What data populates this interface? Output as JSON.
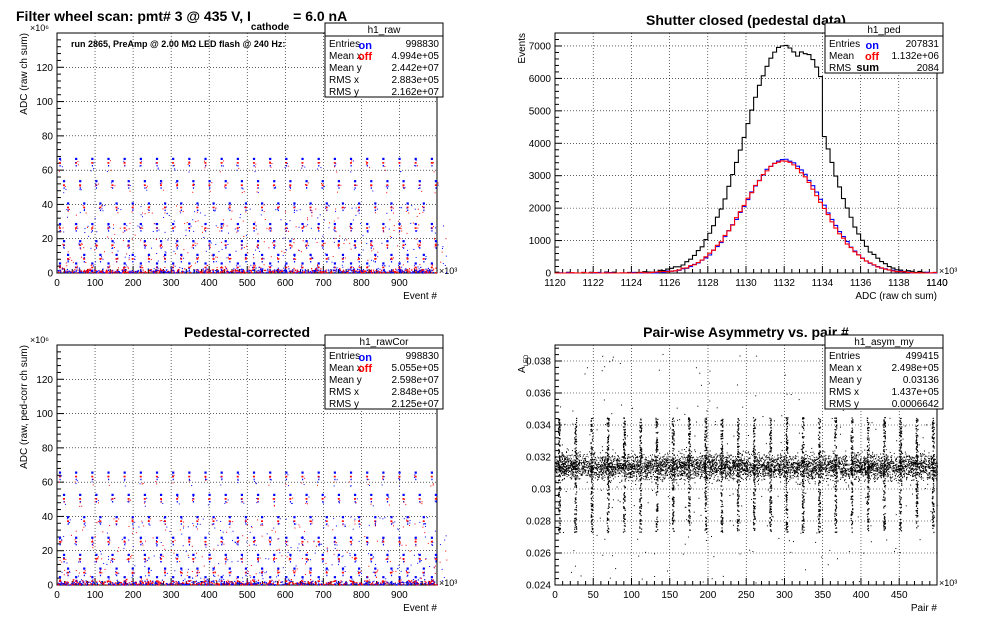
{
  "colors": {
    "on": "#0000ff",
    "off": "#ff0000",
    "sum": "#000000",
    "grid": "#000000"
  },
  "pad_tl": {
    "title_parts": [
      "Filter wheel scan: pmt#   3 @   435 V, I",
      "cathode",
      " = 6.0 nA"
    ],
    "info": "run 2865, PreAmp @ 2.00 MΩ  LED flash @  240 Hz:",
    "legend": [
      "on",
      "off"
    ]
  },
  "pad_bl": {
    "legend": [
      "on",
      "off"
    ]
  },
  "pad_tr": {
    "legend": [
      "on",
      "off",
      "sum"
    ]
  },
  "chart_data": [
    {
      "id": "h1_raw",
      "type": "scatter",
      "title": "",
      "xlabel": "Event #",
      "ylabel": "ADC (raw ch sum)",
      "x_multiplier": "×10³",
      "y_multiplier": "×10⁶",
      "xlim": [
        0,
        998.83
      ],
      "ylim": [
        0,
        140
      ],
      "xticks": [
        0,
        100,
        200,
        300,
        400,
        500,
        600,
        700,
        800,
        900
      ],
      "yticks": [
        0,
        20,
        40,
        60,
        80,
        100,
        120
      ],
      "grid": true,
      "stats": {
        "name": "h1_raw",
        "rows": [
          [
            "Entries",
            "998830"
          ],
          [
            "Mean x",
            "4.994e+05"
          ],
          [
            "Mean y",
            "2.442e+07"
          ],
          [
            "RMS x",
            "2.883e+05"
          ],
          [
            "RMS y",
            "2.162e+07"
          ]
        ]
      },
      "pattern": {
        "cycle_period_ksamples": 42.5,
        "cycle_start": 5,
        "band_levels": [
          66,
          53,
          40,
          28,
          18,
          10,
          5
        ],
        "band_spacing": [
          7,
          6,
          5,
          4,
          3,
          2,
          2
        ]
      }
    },
    {
      "id": "h1_ped",
      "type": "line",
      "title": "Shutter closed (pedestal data)",
      "xlabel": "ADC (raw ch sum)",
      "ylabel": "Events",
      "x_multiplier": "×10³",
      "xlim": [
        1120,
        1140
      ],
      "ylim": [
        0,
        7400
      ],
      "xticks": [
        1120,
        1122,
        1124,
        1126,
        1128,
        1130,
        1132,
        1134,
        1136,
        1138,
        1140
      ],
      "yticks": [
        0,
        1000,
        2000,
        3000,
        4000,
        5000,
        6000,
        7000
      ],
      "grid": true,
      "stats": {
        "name": "h1_ped",
        "rows": [
          [
            "Entries",
            "207831"
          ],
          [
            "Mean",
            "1.132e+06"
          ],
          [
            "RMS",
            "2084"
          ]
        ]
      },
      "series": [
        {
          "name": "sum",
          "values_from": "gaussian",
          "peak": 7000,
          "mean": 1132.0,
          "sigma": 2.08,
          "shoulder": [
            1133.0,
            6800
          ]
        },
        {
          "name": "on",
          "values_from": "gaussian",
          "peak": 3500,
          "mean": 1132.0,
          "sigma": 2.05
        },
        {
          "name": "off",
          "values_from": "gaussian",
          "peak": 3450,
          "mean": 1131.95,
          "sigma": 2.05
        }
      ]
    },
    {
      "id": "h1_rawCor",
      "type": "scatter",
      "title": "Pedestal-corrected",
      "xlabel": "Event #",
      "ylabel": "ADC (raw, ped-corr ch sum)",
      "x_multiplier": "×10³",
      "y_multiplier": "×10⁶",
      "xlim": [
        0,
        998.83
      ],
      "ylim": [
        0,
        140
      ],
      "xticks": [
        0,
        100,
        200,
        300,
        400,
        500,
        600,
        700,
        800,
        900
      ],
      "yticks": [
        0,
        20,
        40,
        60,
        80,
        100,
        120
      ],
      "grid": true,
      "stats": {
        "name": "h1_rawCor",
        "rows": [
          [
            "Entries",
            "998830"
          ],
          [
            "Mean x",
            "5.055e+05"
          ],
          [
            "Mean y",
            "2.598e+07"
          ],
          [
            "RMS x",
            "2.848e+05"
          ],
          [
            "RMS y",
            "2.125e+07"
          ]
        ]
      },
      "pattern": {
        "cycle_period_ksamples": 42.5,
        "cycle_start": 5,
        "band_levels": [
          65,
          52,
          39,
          27,
          17,
          9,
          4
        ],
        "band_spacing": [
          7,
          6,
          5,
          4,
          3,
          2,
          2
        ]
      }
    },
    {
      "id": "h1_asym_my",
      "type": "scatter",
      "title": "Pair-wise Asymmetry vs. pair #",
      "xlabel": "Pair #",
      "ylabel": "A",
      "ylabel_sub": "LED",
      "x_multiplier": "×10³",
      "xlim": [
        0,
        499.415
      ],
      "ylim": [
        0.024,
        0.039
      ],
      "xticks": [
        0,
        50,
        100,
        150,
        200,
        250,
        300,
        350,
        400,
        450
      ],
      "yticks": [
        0.024,
        0.026,
        0.028,
        0.03,
        0.032,
        0.034,
        0.036,
        0.038
      ],
      "ytick_labels": [
        "0.024",
        "0.026",
        "0.028",
        "0.03",
        "0.032",
        "0.034",
        "0.036",
        "0.038"
      ],
      "grid": true,
      "stats": {
        "name": "h1_asym_my",
        "rows": [
          [
            "Entries",
            "499415"
          ],
          [
            "Mean x",
            "2.498e+05"
          ],
          [
            "Mean y",
            "0.03136"
          ],
          [
            "RMS x",
            "1.437e+05"
          ],
          [
            "RMS y",
            "0.0006642"
          ]
        ]
      },
      "pattern": {
        "band_center": 0.0314,
        "band_halfwidth": 0.0007,
        "spike_period": 21.25,
        "spike_start": 5,
        "spike_top": 0.0345,
        "spike_bottom": 0.0273
      }
    }
  ]
}
